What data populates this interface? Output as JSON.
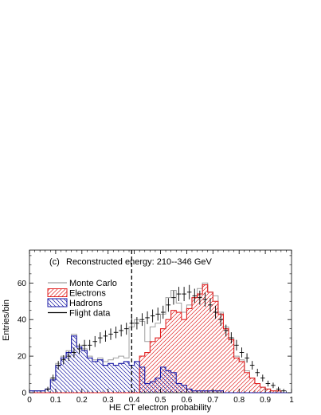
{
  "chart_data": {
    "type": "histogram",
    "panel_label": "(c)",
    "title": "Reconstructed energy: 210--346 GeV",
    "xlabel": "HE CT electron probability",
    "ylabel": "Entries/bin",
    "xlim": [
      0,
      1
    ],
    "ylim": [
      0,
      78
    ],
    "x_ticks": [
      "0",
      "0.1",
      "0.2",
      "0.3",
      "0.4",
      "0.5",
      "0.6",
      "0.7",
      "0.8",
      "0.9",
      "1"
    ],
    "y_ticks": [
      "0",
      "20",
      "40",
      "60"
    ],
    "cut_line_x": 0.39,
    "bin_width": 0.02,
    "bin_starts": [
      0.0,
      0.02,
      0.04,
      0.06,
      0.08,
      0.1,
      0.12,
      0.14,
      0.16,
      0.18,
      0.2,
      0.22,
      0.24,
      0.26,
      0.28,
      0.3,
      0.32,
      0.34,
      0.36,
      0.38,
      0.4,
      0.42,
      0.44,
      0.46,
      0.48,
      0.5,
      0.52,
      0.54,
      0.56,
      0.58,
      0.6,
      0.62,
      0.64,
      0.66,
      0.68,
      0.7,
      0.72,
      0.74,
      0.76,
      0.78,
      0.8,
      0.82,
      0.84,
      0.86,
      0.88,
      0.9,
      0.92,
      0.94,
      0.96,
      0.98
    ],
    "legend": [
      {
        "label": "Monte Carlo",
        "color": "#a0a0a0",
        "style": "line"
      },
      {
        "label": "Electrons",
        "color": "#e02020",
        "style": "hatch-right"
      },
      {
        "label": "Hadrons",
        "color": "#1a1aa6",
        "style": "hatch-left"
      },
      {
        "label": "Flight data",
        "color": "#000000",
        "style": "line"
      }
    ],
    "series": [
      {
        "name": "Monte Carlo",
        "color": "#a0a0a0",
        "values": [
          1,
          1,
          1,
          2,
          8,
          16,
          20,
          23,
          32,
          26,
          24,
          20,
          18,
          19,
          17,
          18,
          19,
          20,
          19,
          36,
          40,
          39,
          28,
          36,
          38,
          43,
          52,
          56,
          49,
          44,
          48,
          52,
          57,
          60,
          55,
          53,
          44,
          36,
          30,
          20,
          18,
          12,
          8,
          5,
          3,
          2,
          1,
          1,
          0,
          0
        ]
      },
      {
        "name": "Electrons",
        "color": "#e02020",
        "values": [
          0,
          0,
          0,
          0,
          0,
          0,
          0,
          0,
          0,
          0,
          0,
          0,
          0,
          0,
          0,
          0,
          0,
          0,
          0,
          0,
          0,
          20,
          22,
          28,
          30,
          35,
          40,
          45,
          44,
          40,
          46,
          52,
          54,
          59,
          55,
          50,
          43,
          35,
          29,
          19,
          17,
          11,
          8,
          5,
          3,
          2,
          1,
          1,
          0,
          0
        ]
      },
      {
        "name": "Hadrons",
        "color": "#1a1aa6",
        "values": [
          1,
          1,
          1,
          2,
          7,
          15,
          19,
          22,
          31,
          25,
          23,
          19,
          17,
          18,
          15,
          16,
          15,
          16,
          17,
          15,
          17,
          14,
          5,
          6,
          8,
          14,
          12,
          11,
          5,
          4,
          2,
          1,
          1,
          1,
          1,
          1,
          1,
          0,
          0,
          0,
          0,
          0,
          0,
          0,
          0,
          0,
          0,
          0,
          0,
          0
        ]
      },
      {
        "name": "Flight data",
        "color": "#000000",
        "values": [
          null,
          null,
          null,
          2,
          8,
          15,
          18,
          20,
          22,
          24,
          26,
          26,
          28,
          30,
          31,
          32,
          33,
          34,
          35,
          38,
          38,
          40,
          41,
          42,
          43,
          44,
          48,
          52,
          54,
          54,
          55,
          53,
          52,
          51,
          48,
          44,
          40,
          34,
          30,
          26,
          22,
          19,
          15,
          11,
          8,
          5,
          4,
          2,
          1,
          null
        ]
      }
    ]
  }
}
